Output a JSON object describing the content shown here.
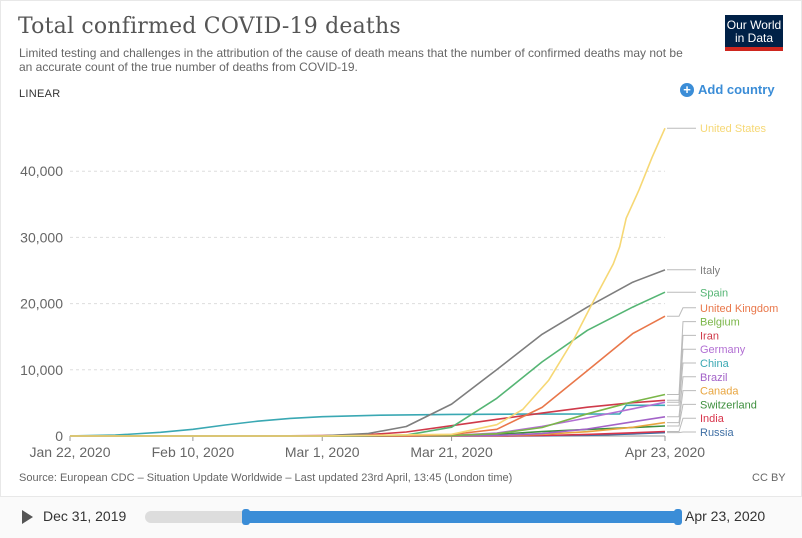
{
  "header": {
    "title": "Total confirmed COVID-19 deaths",
    "subtitle": "Limited testing and challenges in the attribution of the cause of death means that the number of confirmed deaths may not be an accurate count of the true number of deaths from COVID-19.",
    "logo_line1": "Our World",
    "logo_line2": "in Data"
  },
  "controls": {
    "scale": "LINEAR",
    "add_country": "Add country"
  },
  "footer": {
    "source": "Source: European CDC – Situation Update Worldwide – Last updated 23rd April, 13:45 (London time)",
    "license": "CC BY"
  },
  "timeline": {
    "start": "Dec 31, 2019",
    "end": "Apr 23, 2020",
    "selected_start_fraction": 0.19,
    "selected_end_fraction": 1.0
  },
  "colors": {
    "accent": "#3b8dd7",
    "logo_bg": "#002147",
    "logo_red": "#ce261e"
  },
  "chart_data": {
    "type": "line",
    "y_axis_scale": "linear",
    "ylim": [
      0,
      50000
    ],
    "yticks": [
      0,
      10000,
      20000,
      30000,
      40000
    ],
    "ytick_labels": [
      "0",
      "10,000",
      "20,000",
      "30,000",
      "40,000"
    ],
    "x_start": "2020-01-22",
    "x_end": "2020-04-23",
    "xticks": [
      "2020-01-22",
      "2020-02-10",
      "2020-03-01",
      "2020-03-21",
      "2020-04-23"
    ],
    "xtick_labels": [
      "Jan 22, 2020",
      "Feb 10, 2020",
      "Mar 1, 2020",
      "Mar 21, 2020",
      "Apr 23, 2020"
    ],
    "grid": true,
    "series": [
      {
        "name": "United States",
        "color": "#f6d875",
        "label_value": 46500,
        "points": [
          [
            "2020-01-22",
            0
          ],
          [
            "2020-03-01",
            1
          ],
          [
            "2020-03-21",
            260
          ],
          [
            "2020-03-28",
            1700
          ],
          [
            "2020-04-01",
            4000
          ],
          [
            "2020-04-05",
            8400
          ],
          [
            "2020-04-09",
            14800
          ],
          [
            "2020-04-12",
            20500
          ],
          [
            "2020-04-15",
            26000
          ],
          [
            "2020-04-16",
            28600
          ],
          [
            "2020-04-17",
            32900
          ],
          [
            "2020-04-19",
            37200
          ],
          [
            "2020-04-21",
            42100
          ],
          [
            "2020-04-23",
            46500
          ]
        ]
      },
      {
        "name": "Italy",
        "color": "#7e7e7e",
        "label_value": 25100,
        "points": [
          [
            "2020-01-22",
            0
          ],
          [
            "2020-02-22",
            3
          ],
          [
            "2020-03-01",
            34
          ],
          [
            "2020-03-08",
            366
          ],
          [
            "2020-03-14",
            1441
          ],
          [
            "2020-03-21",
            4825
          ],
          [
            "2020-03-28",
            10023
          ],
          [
            "2020-04-04",
            15362
          ],
          [
            "2020-04-11",
            19468
          ],
          [
            "2020-04-18",
            23227
          ],
          [
            "2020-04-23",
            25085
          ]
        ]
      },
      {
        "name": "Spain",
        "color": "#55b574",
        "label_value": 21700,
        "points": [
          [
            "2020-01-22",
            0
          ],
          [
            "2020-03-05",
            1
          ],
          [
            "2020-03-14",
            136
          ],
          [
            "2020-03-21",
            1326
          ],
          [
            "2020-03-28",
            5690
          ],
          [
            "2020-04-04",
            11198
          ],
          [
            "2020-04-11",
            15970
          ],
          [
            "2020-04-18",
            19478
          ],
          [
            "2020-04-23",
            21717
          ]
        ]
      },
      {
        "name": "United Kingdom",
        "color": "#e9774a",
        "label_value": 18100,
        "points": [
          [
            "2020-01-22",
            0
          ],
          [
            "2020-03-07",
            2
          ],
          [
            "2020-03-14",
            21
          ],
          [
            "2020-03-21",
            233
          ],
          [
            "2020-03-28",
            1019
          ],
          [
            "2020-04-04",
            4313
          ],
          [
            "2020-04-11",
            9875
          ],
          [
            "2020-04-18",
            15464
          ],
          [
            "2020-04-23",
            18100
          ]
        ]
      },
      {
        "name": "Belgium",
        "color": "#7ab648",
        "label_value": 6262,
        "points": [
          [
            "2020-01-22",
            0
          ],
          [
            "2020-03-12",
            3
          ],
          [
            "2020-03-21",
            67
          ],
          [
            "2020-03-28",
            353
          ],
          [
            "2020-04-04",
            1283
          ],
          [
            "2020-04-11",
            3346
          ],
          [
            "2020-04-18",
            5163
          ],
          [
            "2020-04-23",
            6262
          ]
        ]
      },
      {
        "name": "Iran",
        "color": "#cf3a4a",
        "label_value": 5391,
        "points": [
          [
            "2020-01-22",
            0
          ],
          [
            "2020-02-20",
            2
          ],
          [
            "2020-03-01",
            54
          ],
          [
            "2020-03-08",
            194
          ],
          [
            "2020-03-14",
            611
          ],
          [
            "2020-03-21",
            1556
          ],
          [
            "2020-03-28",
            2517
          ],
          [
            "2020-04-04",
            3452
          ],
          [
            "2020-04-11",
            4357
          ],
          [
            "2020-04-18",
            5031
          ],
          [
            "2020-04-23",
            5391
          ]
        ]
      },
      {
        "name": "Germany",
        "color": "#b26fd3",
        "label_value": 5094,
        "points": [
          [
            "2020-01-22",
            0
          ],
          [
            "2020-03-10",
            2
          ],
          [
            "2020-03-21",
            84
          ],
          [
            "2020-03-28",
            433
          ],
          [
            "2020-04-04",
            1444
          ],
          [
            "2020-04-11",
            2736
          ],
          [
            "2020-04-18",
            4110
          ],
          [
            "2020-04-23",
            5094
          ]
        ]
      },
      {
        "name": "China",
        "color": "#3aa8b3",
        "label_value": 4632,
        "points": [
          [
            "2020-01-22",
            17
          ],
          [
            "2020-01-29",
            132
          ],
          [
            "2020-02-05",
            563
          ],
          [
            "2020-02-10",
            1018
          ],
          [
            "2020-02-15",
            1666
          ],
          [
            "2020-02-20",
            2236
          ],
          [
            "2020-02-25",
            2663
          ],
          [
            "2020-03-01",
            2912
          ],
          [
            "2020-03-10",
            3136
          ],
          [
            "2020-03-21",
            3261
          ],
          [
            "2020-04-01",
            3312
          ],
          [
            "2020-04-16",
            3345
          ],
          [
            "2020-04-17",
            4632
          ],
          [
            "2020-04-23",
            4632
          ]
        ]
      },
      {
        "name": "Brazil",
        "color": "#a363c8",
        "label_value": 2906,
        "points": [
          [
            "2020-01-22",
            0
          ],
          [
            "2020-03-18",
            1
          ],
          [
            "2020-03-28",
            92
          ],
          [
            "2020-04-04",
            359
          ],
          [
            "2020-04-11",
            1057
          ],
          [
            "2020-04-18",
            2141
          ],
          [
            "2020-04-23",
            2906
          ]
        ]
      },
      {
        "name": "Canada",
        "color": "#e8a53f",
        "label_value": 2028,
        "points": [
          [
            "2020-01-22",
            0
          ],
          [
            "2020-03-10",
            1
          ],
          [
            "2020-03-21",
            12
          ],
          [
            "2020-03-28",
            61
          ],
          [
            "2020-04-04",
            253
          ],
          [
            "2020-04-11",
            653
          ],
          [
            "2020-04-18",
            1310
          ],
          [
            "2020-04-23",
            2028
          ]
        ]
      },
      {
        "name": "Switzerland",
        "color": "#3e8f3e",
        "label_value": 1509,
        "points": [
          [
            "2020-01-22",
            0
          ],
          [
            "2020-03-06",
            1
          ],
          [
            "2020-03-21",
            56
          ],
          [
            "2020-03-28",
            264
          ],
          [
            "2020-04-04",
            666
          ],
          [
            "2020-04-11",
            1002
          ],
          [
            "2020-04-18",
            1281
          ],
          [
            "2020-04-23",
            1509
          ]
        ]
      },
      {
        "name": "India",
        "color": "#d8354c",
        "label_value": 681,
        "points": [
          [
            "2020-01-22",
            0
          ],
          [
            "2020-03-13",
            1
          ],
          [
            "2020-03-28",
            19
          ],
          [
            "2020-04-04",
            75
          ],
          [
            "2020-04-11",
            239
          ],
          [
            "2020-04-18",
            480
          ],
          [
            "2020-04-23",
            681
          ]
        ]
      },
      {
        "name": "Russia",
        "color": "#3f6fa4",
        "label_value": 513,
        "points": [
          [
            "2020-01-22",
            0
          ],
          [
            "2020-03-20",
            1
          ],
          [
            "2020-03-28",
            4
          ],
          [
            "2020-04-04",
            34
          ],
          [
            "2020-04-11",
            106
          ],
          [
            "2020-04-18",
            313
          ],
          [
            "2020-04-23",
            513
          ]
        ]
      }
    ]
  }
}
